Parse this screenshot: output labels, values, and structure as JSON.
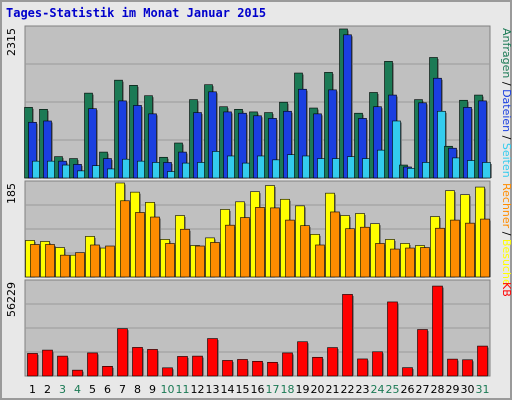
{
  "chart_data": {
    "type": "bar",
    "title": "Tages-Statistik im Monat Januar 2015",
    "categories": [
      "1",
      "2",
      "3",
      "4",
      "5",
      "6",
      "7",
      "8",
      "9",
      "10",
      "11",
      "12",
      "13",
      "14",
      "15",
      "16",
      "17",
      "18",
      "19",
      "20",
      "21",
      "22",
      "23",
      "24",
      "25",
      "26",
      "27",
      "28",
      "29",
      "30",
      "31"
    ],
    "weekend_days": [
      "3",
      "4",
      "10",
      "11",
      "17",
      "18",
      "24",
      "25",
      "31"
    ],
    "colors": {
      "anfragen": "#1b7a55",
      "dateien": "#1a3fe0",
      "seiten": "#33ccee",
      "besuche": "#ffff00",
      "rechner": "#ff8c00",
      "kb": "#ff0000",
      "weekday_label": "#000000",
      "weekend_label": "#1b7a55",
      "panel_bg": "#c0c0c0"
    },
    "panels": [
      {
        "id": "top",
        "ymax_label": "2315",
        "ylim": [
          0,
          2315
        ],
        "series": [
          {
            "name": "Anfragen",
            "values": [
              1090,
              1060,
              330,
              300,
              1310,
              400,
              1510,
              1430,
              1270,
              320,
              540,
              1210,
              1440,
              1100,
              1060,
              1020,
              1010,
              1170,
              1620,
              1080,
              1630,
              2300,
              1000,
              1320,
              1800,
              200,
              1210,
              1860,
              490,
              1200,
              1280
            ]
          },
          {
            "name": "Dateien",
            "values": [
              860,
              880,
              260,
              210,
              1070,
              300,
              1190,
              1120,
              990,
              240,
              400,
              1010,
              1330,
              1020,
              1000,
              960,
              920,
              1030,
              1370,
              990,
              1360,
              2210,
              920,
              1100,
              1280,
              170,
              1160,
              1540,
              460,
              1090,
              1190
            ]
          },
          {
            "name": "Seiten",
            "values": [
              260,
              260,
              200,
              110,
              190,
              140,
              290,
              260,
              240,
              100,
              230,
              240,
              410,
              340,
              230,
              340,
              280,
              360,
              340,
              300,
              300,
              330,
              300,
              430,
              880,
              150,
              240,
              1030,
              310,
              270,
              240
            ]
          }
        ],
        "right_labels": [
          {
            "text": "Anfragen",
            "color": "#1b7a55"
          },
          {
            "text": " / ",
            "color": "#000000"
          },
          {
            "text": "Dateien",
            "color": "#1a3fe0"
          },
          {
            "text": " / ",
            "color": "#000000"
          },
          {
            "text": "Seiten",
            "color": "#33ccee"
          }
        ]
      },
      {
        "id": "middle",
        "ymax_label": "185",
        "ylim": [
          0,
          185
        ],
        "series": [
          {
            "name": "Besuche",
            "values": [
              72,
              70,
              58,
              43,
              80,
              57,
              185,
              167,
              147,
              74,
              121,
              62,
              77,
              133,
              148,
              168,
              180,
              153,
              140,
              84,
              165,
              121,
              125,
              105,
              74,
              66,
              62,
              119,
              170,
              162,
              177
            ]
          },
          {
            "name": "Rechner",
            "values": [
              64,
              64,
              43,
              48,
              63,
              61,
              150,
              127,
              118,
              66,
              94,
              61,
              68,
              102,
              117,
              137,
              136,
              112,
              101,
              63,
              128,
              95,
              98,
              66,
              55,
              57,
              58,
              96,
              112,
              106,
              114
            ]
          }
        ],
        "right_labels": [
          {
            "text": "Rechner",
            "color": "#ff8c00"
          },
          {
            "text": " / ",
            "color": "#000000"
          },
          {
            "text": "Besuche",
            "color": "#ffff00"
          }
        ]
      },
      {
        "id": "bottom",
        "ymax_label": "56229",
        "ylim": [
          0,
          56229
        ],
        "series": [
          {
            "name": "KB",
            "values": [
              13500,
              15500,
              11900,
              3500,
              13800,
              5800,
              28300,
              17100,
              15900,
              4900,
              11700,
              11900,
              22400,
              9300,
              9900,
              8800,
              8200,
              13800,
              20500,
              11200,
              17000,
              48800,
              10200,
              14500,
              44300,
              5000,
              27800,
              53800,
              10100,
              9700,
              17900
            ]
          }
        ],
        "right_labels": [
          {
            "text": "KB",
            "color": "#ff0000"
          }
        ]
      }
    ]
  }
}
